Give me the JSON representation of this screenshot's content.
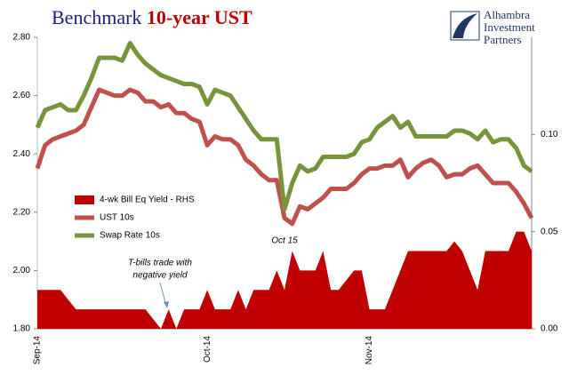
{
  "chart_data": {
    "type": "line",
    "title": "Benchmark",
    "title_highlight": "10-year UST",
    "logo": [
      "Alhambra",
      "Investment",
      "Partners"
    ],
    "annotations": [
      {
        "text": [
          "T-bills trade with",
          "negative yield"
        ]
      },
      {
        "text": [
          "Oct 15"
        ]
      }
    ],
    "categories": [
      "Sep-14",
      null,
      null,
      null,
      null,
      null,
      null,
      null,
      null,
      null,
      null,
      null,
      null,
      null,
      null,
      null,
      null,
      null,
      null,
      null,
      null,
      null,
      "Oct-14",
      null,
      null,
      null,
      null,
      null,
      null,
      null,
      null,
      null,
      null,
      null,
      null,
      null,
      null,
      null,
      null,
      null,
      null,
      null,
      null,
      "Nov-14",
      null,
      null,
      null,
      null,
      null,
      null,
      null,
      null,
      null,
      null,
      null,
      null,
      null,
      null,
      null,
      null,
      null,
      null,
      null,
      null,
      null
    ],
    "ylim": [
      1.8,
      2.8
    ],
    "yticks": [
      {
        "value": 1.8,
        "label": "1.80"
      },
      {
        "value": 2.0,
        "label": "2.00"
      },
      {
        "value": 2.2,
        "label": "2.20"
      },
      {
        "value": 2.4,
        "label": "2.40"
      },
      {
        "value": 2.6,
        "label": "2.60"
      },
      {
        "value": 2.8,
        "label": "2.80"
      }
    ],
    "y2lim": [
      0,
      0.15
    ],
    "y2ticks": [
      {
        "value": 0,
        "label": "0.00"
      },
      0.05,
      {
        "value": 0.1,
        "label": "0.10"
      }
    ],
    "series": [
      {
        "name": "4-wk Bill Eq Yield - RHS",
        "type": "area",
        "axis": "y2",
        "color": "#c00000",
        "values": [
          0.02,
          0.02,
          0.02,
          0.02,
          0.015,
          0.01,
          0.01,
          0.01,
          0.01,
          0.01,
          0.01,
          0.01,
          0.01,
          0.01,
          0.01,
          0.005,
          0,
          0.01,
          0,
          0.01,
          0.01,
          0.01,
          0.02,
          0.01,
          0.01,
          0.01,
          0.02,
          0.01,
          0.02,
          0.02,
          0.02,
          0.03,
          0.02,
          0.04,
          0.03,
          0.03,
          0.03,
          0.04,
          0.02,
          0.02,
          0.025,
          0.03,
          0.03,
          0.01,
          0.01,
          0.01,
          0.02,
          0.03,
          0.04,
          0.04,
          0.04,
          0.04,
          0.04,
          0.04,
          0.045,
          0.04,
          0.03,
          0.02,
          0.04,
          0.04,
          0.04,
          0.04,
          0.05,
          0.05,
          0.04
        ]
      },
      {
        "name": "UST 10s",
        "color": "#c0504d",
        "values": [
          2.35,
          2.43,
          2.45,
          2.46,
          2.47,
          2.48,
          2.5,
          2.56,
          2.62,
          2.61,
          2.6,
          2.6,
          2.62,
          2.61,
          2.58,
          2.58,
          2.56,
          2.57,
          2.54,
          2.54,
          2.52,
          2.51,
          2.43,
          2.46,
          2.45,
          2.45,
          2.43,
          2.38,
          2.36,
          2.33,
          2.31,
          2.31,
          2.18,
          2.16,
          2.22,
          2.21,
          2.23,
          2.25,
          2.28,
          2.28,
          2.28,
          2.3,
          2.33,
          2.35,
          2.35,
          2.36,
          2.36,
          2.38,
          2.32,
          2.35,
          2.37,
          2.38,
          2.36,
          2.32,
          2.33,
          2.33,
          2.35,
          2.36,
          2.33,
          2.3,
          2.3,
          2.3,
          2.27,
          2.23,
          2.18
        ]
      },
      {
        "name": "Swap Rate 10s",
        "color": "#77933c",
        "values": [
          2.49,
          2.55,
          2.56,
          2.57,
          2.55,
          2.55,
          2.6,
          2.66,
          2.73,
          2.73,
          2.73,
          2.72,
          2.78,
          2.74,
          2.71,
          2.69,
          2.67,
          2.66,
          2.65,
          2.64,
          2.64,
          2.63,
          2.57,
          2.62,
          2.61,
          2.6,
          2.56,
          2.52,
          2.48,
          2.45,
          2.45,
          2.45,
          2.21,
          2.3,
          2.36,
          2.34,
          2.35,
          2.39,
          2.39,
          2.39,
          2.39,
          2.4,
          2.44,
          2.45,
          2.49,
          2.51,
          2.53,
          2.49,
          2.51,
          2.46,
          2.46,
          2.46,
          2.46,
          2.46,
          2.48,
          2.48,
          2.47,
          2.45,
          2.48,
          2.44,
          2.45,
          2.45,
          2.42,
          2.36,
          2.34
        ]
      }
    ]
  }
}
